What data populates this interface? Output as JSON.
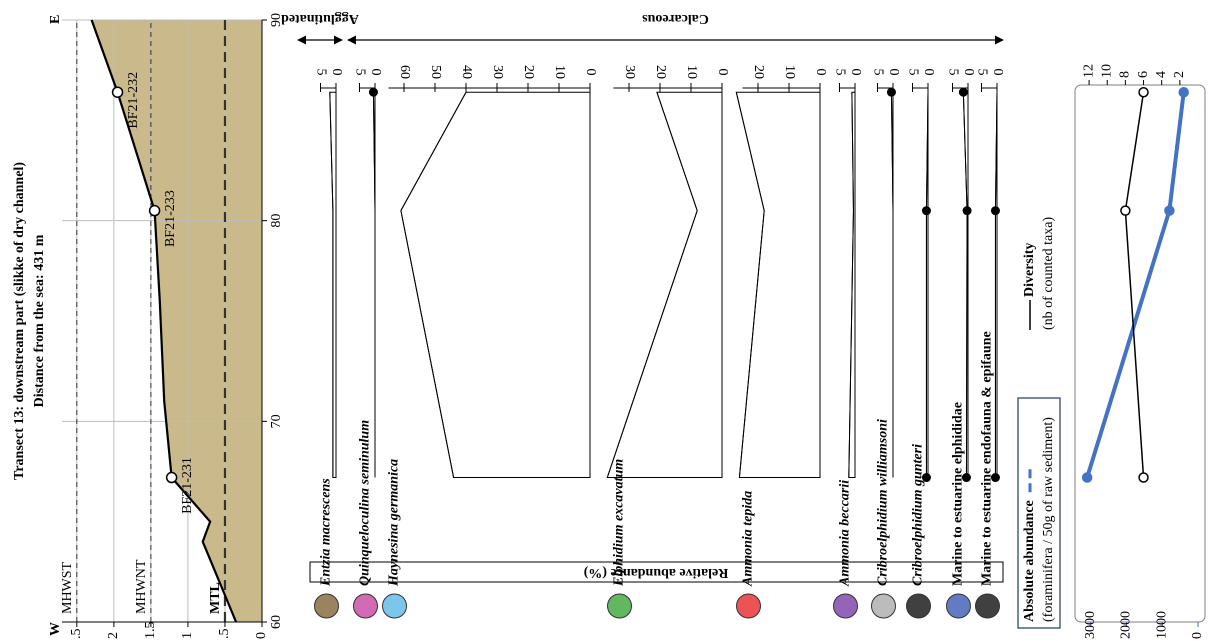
{
  "chart_data": [
    {
      "type": "profile",
      "title": "Transect 13: downstream part (slikke of dry channel)",
      "subtitle": "Distance from the sea: 431 m",
      "west_label": "W",
      "east_label": "E",
      "x": [
        60,
        64,
        65,
        67.2,
        71,
        76,
        80.5,
        86.4,
        90
      ],
      "values": [
        0.35,
        0.8,
        0.7,
        1.22,
        1.32,
        1.38,
        1.45,
        1.95,
        2.3
      ],
      "color": "#c9b98b",
      "xlim": [
        60,
        90
      ],
      "xticks": [
        60,
        70,
        80,
        90
      ],
      "ylim": [
        0,
        2.7
      ],
      "yticks": [
        0,
        {
          "value": 0.5,
          "label": ".5"
        },
        1,
        1.5,
        2,
        {
          "value": 2.5,
          "label": ".5"
        }
      ],
      "grid": true,
      "samples": [
        {
          "label": "BF21-231",
          "x": 67.2,
          "value": 1.22
        },
        {
          "label": "BF21-233",
          "x": 80.5,
          "value": 1.45
        },
        {
          "label": "BF21-232",
          "x": 86.4,
          "value": 1.95
        }
      ],
      "reference_lines": [
        {
          "label": "MTL",
          "value": 0.5
        },
        {
          "label": "MHWNT",
          "value": 1.5
        },
        {
          "label": "MHWST",
          "value": 2.5
        }
      ]
    },
    {
      "type": "strat",
      "axis_title": "Relative abundance (%)",
      "groups": [
        {
          "label": "Agglutinated"
        },
        {
          "label": "Calcareous"
        }
      ],
      "x": [
        67.2,
        80.5,
        86.4
      ],
      "series": [
        {
          "name": "Entzia macrescens",
          "color": "#7a5a2a",
          "italic": true,
          "markers": false,
          "values": [
            1,
            1,
            2
          ],
          "ylim": [
            0,
            5
          ],
          "yticks": [
            0,
            5
          ]
        },
        {
          "name": "Quinqueloculina seminulum",
          "color": "#c0399b",
          "italic": true,
          "markers": true,
          "values": [
            0,
            0,
            0.5
          ],
          "ylim": [
            0,
            5
          ],
          "yticks": [
            0,
            5
          ]
        },
        {
          "name": "Haynesina germanica",
          "color": "#4fb3e3",
          "italic": true,
          "markers": false,
          "values": [
            44,
            61,
            40
          ],
          "ylim": [
            0,
            65
          ],
          "yticks": [
            0,
            10,
            20,
            30,
            40,
            50,
            60
          ]
        },
        {
          "name": "Elphidium excavatum",
          "color": "#2ca02c",
          "italic": true,
          "markers": false,
          "values": [
            37,
            8,
            21
          ],
          "ylim": [
            0,
            35
          ],
          "yticks": [
            0,
            10,
            20,
            30
          ]
        },
        {
          "name": "Ammonia tepida",
          "color": "#e41a1c",
          "italic": true,
          "markers": false,
          "values": [
            26,
            18,
            27
          ],
          "ylim": [
            0,
            25
          ],
          "yticks": [
            0,
            10,
            20
          ]
        },
        {
          "name": "Ammonia beccarii",
          "color": "#7030a0",
          "italic": true,
          "markers": false,
          "values": [
            2,
            0.5,
            1
          ],
          "ylim": [
            0,
            5
          ],
          "yticks": [
            0,
            5
          ]
        },
        {
          "name": "Cribroelphidium williamsoni",
          "color": "#a6a6a6",
          "italic": true,
          "markers": true,
          "values": [
            0,
            0,
            0.5
          ],
          "ylim": [
            0,
            5
          ],
          "yticks": [
            0,
            5
          ]
        },
        {
          "name": "Cribroelphidium gunteri",
          "color": "#000000",
          "italic": true,
          "markers": true,
          "values": [
            0.5,
            0.5,
            0
          ],
          "ylim": [
            0,
            5
          ],
          "yticks": [
            0,
            5
          ]
        },
        {
          "name": "Marine to estuarine elphididae",
          "color": "#2f4fb0",
          "italic": false,
          "markers": true,
          "values": [
            0.5,
            0.3,
            1.5
          ],
          "ylim": [
            0,
            5
          ],
          "yticks": [
            0,
            5
          ]
        },
        {
          "name": "Marine to estuarine endofauna & epifaune",
          "color": "#000000",
          "italic": false,
          "markers": true,
          "values": [
            0.5,
            0.5,
            0
          ],
          "ylim": [
            0,
            5
          ],
          "yticks": [
            0,
            5
          ]
        }
      ]
    },
    {
      "type": "line",
      "x": [
        67.2,
        80.5,
        86.4
      ],
      "ylim": [
        0,
        3300
      ],
      "yticks": [
        0,
        1000,
        2000,
        3000
      ],
      "y2lim": [
        0,
        13
      ],
      "y2ticks": [
        2,
        4,
        6,
        8,
        10,
        12
      ],
      "series": [
        {
          "name": "Absolute abundance",
          "note": "(foraminifera / 50g of raw sediment)",
          "color": "#4472c4",
          "marker": "filled",
          "values": [
            3100,
            800,
            400
          ]
        },
        {
          "name": "Diversity",
          "note": "(nb of counted taxa)",
          "color": "#000000",
          "marker": "open",
          "axis": "y2",
          "values": [
            6,
            8,
            6
          ]
        }
      ]
    }
  ]
}
